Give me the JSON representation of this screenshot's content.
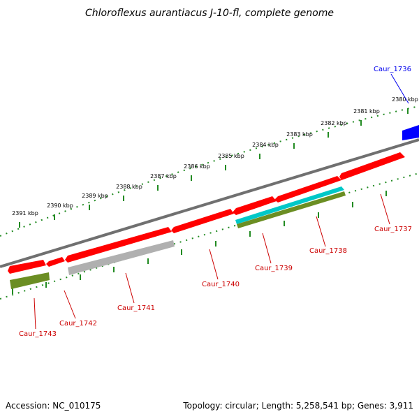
{
  "title": "Chloroflexus aurantiacus J-10-fl, complete genome",
  "footer": {
    "accession": "Accession: NC_010175",
    "topology": "Topology: circular; Length: 5,258,541 bp; Genes: 3,911"
  },
  "ticks": [
    "2380 kbp",
    "2381 kbp",
    "2382 kbp",
    "2383 kbp",
    "2384 kbp",
    "2385 kbp",
    "2386 kbp",
    "2387 kbp",
    "2388 kbp",
    "2389 kbp",
    "2390 kbp",
    "2391 kbp"
  ],
  "genes": [
    {
      "id": "Caur_1736",
      "color": "#0000ee"
    },
    {
      "id": "Caur_1737",
      "color": "#cc0000"
    },
    {
      "id": "Caur_1738",
      "color": "#cc0000"
    },
    {
      "id": "Caur_1739",
      "color": "#cc0000"
    },
    {
      "id": "Caur_1740",
      "color": "#cc0000"
    },
    {
      "id": "Caur_1741",
      "color": "#cc0000"
    },
    {
      "id": "Caur_1742",
      "color": "#cc0000"
    },
    {
      "id": "Caur_1743",
      "color": "#cc0000"
    }
  ],
  "colors": {
    "cds": "#ff0000",
    "gene_blue": "#0000ff",
    "rna": "#00c8c8",
    "olive": "#6b8e23",
    "grey": "#b0b0b0",
    "tick": "#228b22"
  }
}
